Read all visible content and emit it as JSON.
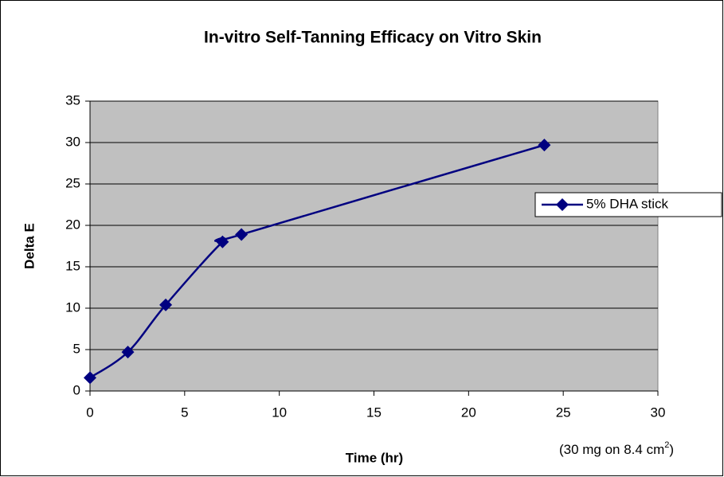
{
  "chart_data": {
    "type": "line",
    "title": "In-vitro Self-Tanning Efficacy on Vitro Skin",
    "xlabel": "Time (hr)",
    "ylabel": "Delta E",
    "annotation": {
      "text": "(30 mg on 8.4 cm",
      "sup": "2",
      "tail": ")"
    },
    "x": [
      0,
      2,
      4,
      7,
      8,
      24
    ],
    "series": [
      {
        "name": "5% DHA stick",
        "color": "#000080",
        "values": [
          1.6,
          4.7,
          10.4,
          18,
          18.9,
          29.7
        ]
      }
    ],
    "xlim": [
      0,
      30
    ],
    "xticks": [
      0,
      5,
      10,
      15,
      20,
      25,
      30
    ],
    "ylim": [
      0,
      35
    ],
    "yticks": [
      0,
      5,
      10,
      15,
      20,
      25,
      30,
      35
    ],
    "grid": true,
    "smooth": true,
    "legend": "right",
    "plot_background": "#c0c0c0"
  }
}
